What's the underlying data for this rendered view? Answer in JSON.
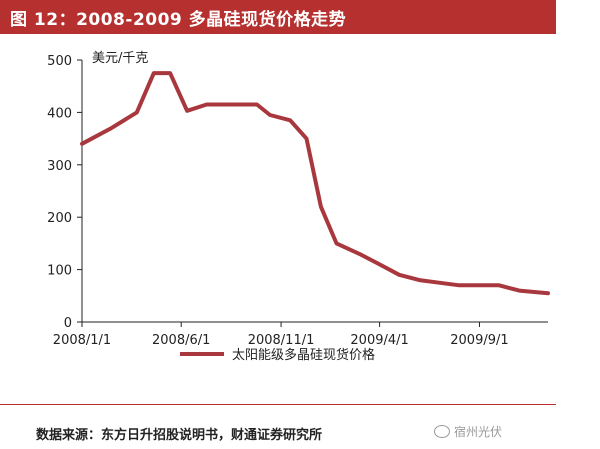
{
  "header": {
    "title": "图 12：2008-2009 多晶硅现货价格走势"
  },
  "colors": {
    "accent": "#b5302f",
    "series_line": "#a8383d",
    "axis": "#222222"
  },
  "chart_data": {
    "type": "line",
    "unit_label": "美元/千克",
    "x_tick_labels": [
      "2008/1/1",
      "2008/6/1",
      "2008/11/1",
      "2009/4/1",
      "2009/9/1"
    ],
    "x_tick_dates": [
      "2008-01-01",
      "2008-06-01",
      "2008-11-01",
      "2009-04-01",
      "2009-09-01"
    ],
    "xlim": [
      "2008-01-01",
      "2009-12-15"
    ],
    "ylim": [
      0,
      500
    ],
    "y_ticks": [
      0,
      100,
      200,
      300,
      400,
      500
    ],
    "grid": false,
    "legend_position": "bottom",
    "series": [
      {
        "name": "太阳能级多晶硅现货价格",
        "points": [
          {
            "x": "2008-01-01",
            "y": 340
          },
          {
            "x": "2008-02-15",
            "y": 370
          },
          {
            "x": "2008-03-25",
            "y": 400
          },
          {
            "x": "2008-04-20",
            "y": 475
          },
          {
            "x": "2008-05-15",
            "y": 475
          },
          {
            "x": "2008-06-10",
            "y": 403
          },
          {
            "x": "2008-07-10",
            "y": 415
          },
          {
            "x": "2008-08-15",
            "y": 415
          },
          {
            "x": "2008-09-25",
            "y": 415
          },
          {
            "x": "2008-10-15",
            "y": 395
          },
          {
            "x": "2008-11-15",
            "y": 385
          },
          {
            "x": "2008-12-10",
            "y": 350
          },
          {
            "x": "2009-01-01",
            "y": 220
          },
          {
            "x": "2009-01-25",
            "y": 150
          },
          {
            "x": "2009-03-01",
            "y": 130
          },
          {
            "x": "2009-04-01",
            "y": 110
          },
          {
            "x": "2009-05-01",
            "y": 90
          },
          {
            "x": "2009-06-01",
            "y": 80
          },
          {
            "x": "2009-07-01",
            "y": 75
          },
          {
            "x": "2009-08-01",
            "y": 70
          },
          {
            "x": "2009-09-01",
            "y": 70
          },
          {
            "x": "2009-10-01",
            "y": 70
          },
          {
            "x": "2009-11-01",
            "y": 60
          },
          {
            "x": "2009-12-15",
            "y": 55
          }
        ]
      }
    ]
  },
  "source": {
    "text": "数据来源：东方日升招股说明书，财通证券研究所"
  },
  "watermark": {
    "icon": "wechat-logo-icon",
    "text": "宿州光伏"
  }
}
